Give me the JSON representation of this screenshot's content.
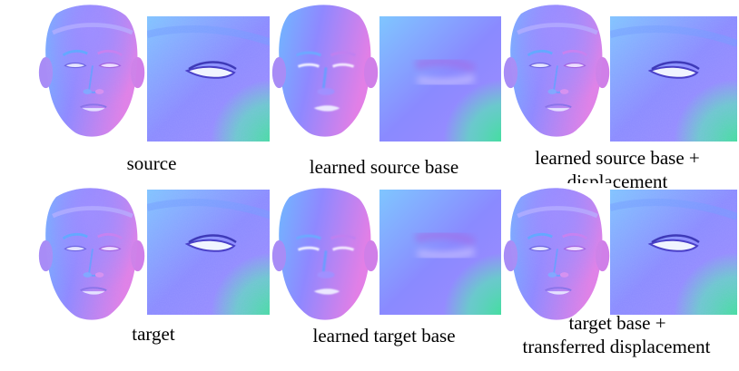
{
  "captions": {
    "source": "source",
    "learned_source_base": "learned source base",
    "learned_source_disp_line1": "learned source base +",
    "learned_source_disp_line2": "displacement",
    "target": "target",
    "learned_target_base": "learned target base",
    "target_transfer_line1": "target base +",
    "target_transfer_line2": "transferred displacement"
  },
  "panels": {
    "row1": [
      "source face normal map",
      "source eye close-up",
      "learned source base face",
      "learned source base eye close-up",
      "learned source base + displacement face",
      "learned source base + displacement eye close-up"
    ],
    "row2": [
      "target face normal map",
      "target eye close-up",
      "learned target base face",
      "learned target base eye close-up",
      "target base + transferred displacement face",
      "target base + transferred displacement eye close-up"
    ]
  },
  "colors": {
    "normal_blue": "#7f7fff",
    "normal_purple": "#b47ff0",
    "normal_pink": "#f07fd0",
    "normal_cyan": "#7fd8ff",
    "normal_green": "#5fe0a0",
    "background": "#ffffff"
  }
}
